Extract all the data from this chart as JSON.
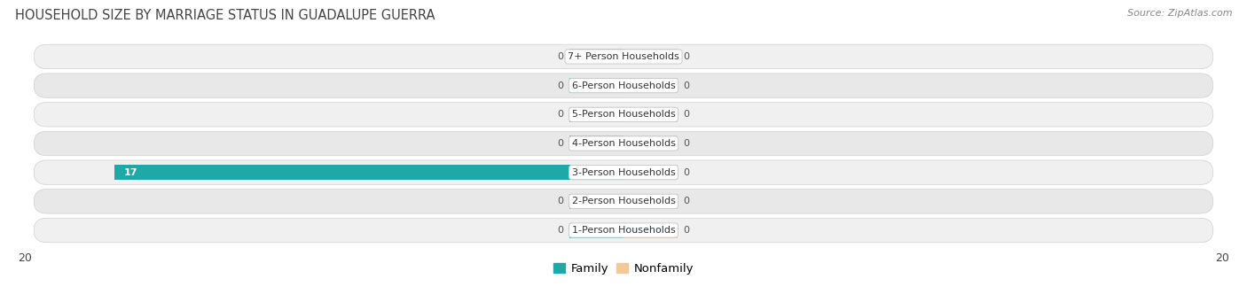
{
  "title": "HOUSEHOLD SIZE BY MARRIAGE STATUS IN GUADALUPE GUERRA",
  "source": "Source: ZipAtlas.com",
  "categories": [
    "7+ Person Households",
    "6-Person Households",
    "5-Person Households",
    "4-Person Households",
    "3-Person Households",
    "2-Person Households",
    "1-Person Households"
  ],
  "family_values": [
    0,
    0,
    0,
    0,
    17,
    0,
    0
  ],
  "nonfamily_values": [
    0,
    0,
    0,
    0,
    0,
    0,
    0
  ],
  "family_color": "#5bbcbe",
  "nonfamily_color": "#f5c89a",
  "family_color_highlight": "#1fa8a8",
  "xlim": [
    -20,
    20
  ],
  "bar_height": 0.52,
  "stub_size": 1.8,
  "title_fontsize": 10.5,
  "source_fontsize": 8,
  "axis_fontsize": 9,
  "legend_fontsize": 9.5,
  "label_fontsize": 8,
  "value_fontsize": 8
}
